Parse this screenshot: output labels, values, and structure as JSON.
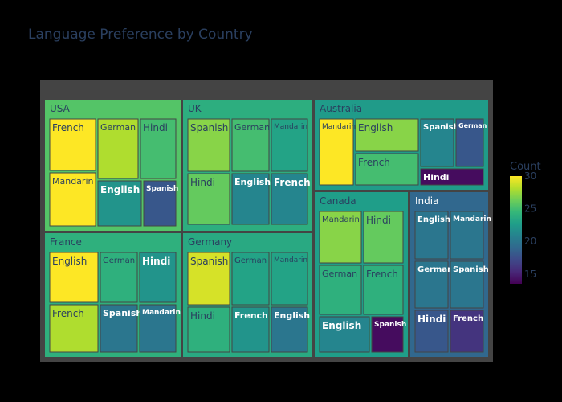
{
  "chart_data": {
    "type": "treemap",
    "title": "Language Preference by Country",
    "colorbar": {
      "title": "Count",
      "range": [
        13.5,
        30
      ],
      "ticks": [
        15,
        20,
        25,
        30
      ]
    },
    "colorscale": "viridis",
    "groups": [
      {
        "name": "USA",
        "items": [
          {
            "label": "French",
            "value": 30
          },
          {
            "label": "German",
            "value": 28
          },
          {
            "label": "Hindi",
            "value": 25
          },
          {
            "label": "Mandarin",
            "value": 30
          },
          {
            "label": "English",
            "value": 22
          },
          {
            "label": "Spanish",
            "value": 18
          }
        ]
      },
      {
        "name": "UK",
        "items": [
          {
            "label": "Spanish",
            "value": 27
          },
          {
            "label": "German",
            "value": 25
          },
          {
            "label": "Mandarin",
            "value": 23
          },
          {
            "label": "Hindi",
            "value": 26
          },
          {
            "label": "English",
            "value": 21
          },
          {
            "label": "French",
            "value": 21
          }
        ]
      },
      {
        "name": "Australia",
        "items": [
          {
            "label": "Mandarin",
            "value": 30
          },
          {
            "label": "English",
            "value": 27
          },
          {
            "label": "French",
            "value": 25
          },
          {
            "label": "Spanish",
            "value": 21
          },
          {
            "label": "German",
            "value": 18
          },
          {
            "label": "Hindi",
            "value": 14
          }
        ]
      },
      {
        "name": "France",
        "items": [
          {
            "label": "English",
            "value": 30
          },
          {
            "label": "German",
            "value": 24
          },
          {
            "label": "Hindi",
            "value": 22
          },
          {
            "label": "French",
            "value": 28
          },
          {
            "label": "Spanish",
            "value": 20
          },
          {
            "label": "Mandarin",
            "value": 20
          }
        ]
      },
      {
        "name": "Germany",
        "items": [
          {
            "label": "Spanish",
            "value": 29
          },
          {
            "label": "German",
            "value": 23
          },
          {
            "label": "Mandarin",
            "value": 23
          },
          {
            "label": "Hindi",
            "value": 24
          },
          {
            "label": "French",
            "value": 22
          },
          {
            "label": "English",
            "value": 20
          }
        ]
      },
      {
        "name": "Canada",
        "items": [
          {
            "label": "Mandarin",
            "value": 27
          },
          {
            "label": "Hindi",
            "value": 26
          },
          {
            "label": "German",
            "value": 24
          },
          {
            "label": "French",
            "value": 24
          },
          {
            "label": "English",
            "value": 21
          },
          {
            "label": "Spanish",
            "value": 14
          }
        ]
      },
      {
        "name": "India",
        "items": [
          {
            "label": "English",
            "value": 20
          },
          {
            "label": "Mandarin",
            "value": 20
          },
          {
            "label": "German",
            "value": 20
          },
          {
            "label": "Spanish",
            "value": 20
          },
          {
            "label": "Hindi",
            "value": 18
          },
          {
            "label": "French",
            "value": 16
          }
        ]
      }
    ]
  }
}
